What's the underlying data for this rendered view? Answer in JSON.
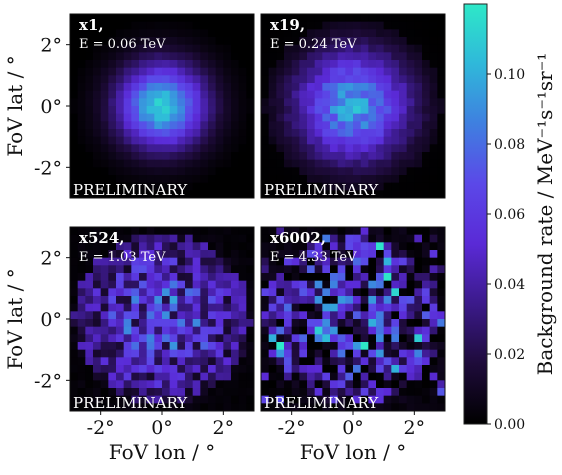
{
  "chart_data": {
    "type": "heatmap",
    "grid_layout": "2x2",
    "shared_axes": {
      "xlabel": "FoV lon / °",
      "ylabel": "FoV lat / °",
      "xlim": [
        -3,
        3
      ],
      "ylim": [
        -3,
        3
      ],
      "xticks": [
        -2,
        0,
        2
      ],
      "yticks": [
        -2,
        0,
        2
      ],
      "xtick_labels": [
        "-2°",
        "0°",
        "2°"
      ],
      "ytick_labels": [
        "-2°",
        "0°",
        "2°"
      ]
    },
    "watermark": "PRELIMINARY",
    "panels": [
      {
        "id": "p1",
        "label": "x1,",
        "energy_text": "E = 0.06 TeV",
        "peak_rate": 0.11,
        "spread_deg": 1.0,
        "noise": 0.05,
        "bins": 24
      },
      {
        "id": "p2",
        "label": "x19,",
        "energy_text": "E = 0.24 TeV",
        "peak_rate": 0.095,
        "spread_deg": 1.3,
        "noise": 0.12,
        "bins": 24
      },
      {
        "id": "p3",
        "label": "x524,",
        "energy_text": "E = 1.03 TeV",
        "peak_rate": 0.06,
        "spread_deg": 2.2,
        "noise": 0.55,
        "bins": 24
      },
      {
        "id": "p4",
        "label": "x6002,",
        "energy_text": "E = 4.33 TeV",
        "peak_rate": 0.045,
        "spread_deg": 3.0,
        "noise": 1.0,
        "bins": 24
      }
    ],
    "colorbar": {
      "label": "Background rate / MeV⁻¹s⁻¹sr⁻¹",
      "range": [
        0,
        0.12
      ],
      "ticks": [
        0.0,
        0.02,
        0.04,
        0.06,
        0.08,
        0.1
      ],
      "tick_labels": [
        "0.00",
        "0.02",
        "0.04",
        "0.06",
        "0.08",
        "0.10"
      ],
      "colormap": [
        "#000000",
        "#1e0b3a",
        "#3b1a8a",
        "#5a2ad6",
        "#5b48e8",
        "#3f7fe0",
        "#2fb8da",
        "#2ee8c8"
      ]
    }
  }
}
